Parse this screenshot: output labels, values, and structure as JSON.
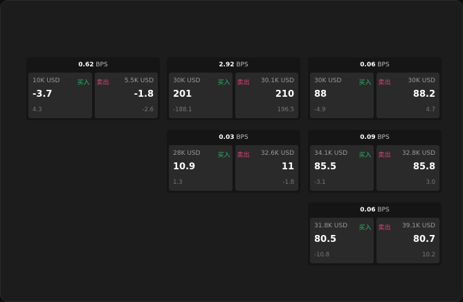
{
  "labels": {
    "buy": "买入",
    "sell": "卖出",
    "unit": "BPS"
  },
  "colors": {
    "buy": "#2db36a",
    "sell": "#e0407a"
  },
  "cards": [
    {
      "spread": "0.62",
      "bid": {
        "size": "10K USD",
        "price": "-3.7",
        "change": "4.3"
      },
      "ask": {
        "size": "5.5K USD",
        "price": "-1.8",
        "change": "-2.6"
      }
    },
    {
      "spread": "2.92",
      "bid": {
        "size": "30K USD",
        "price": "201",
        "change": "-188.1"
      },
      "ask": {
        "size": "30.1K USD",
        "price": "210",
        "change": "196.5"
      }
    },
    {
      "spread": "0.06",
      "bid": {
        "size": "30K USD",
        "price": "88",
        "change": "-4.9"
      },
      "ask": {
        "size": "30K USD",
        "price": "88.2",
        "change": "4.7"
      }
    },
    {
      "spread": "0.03",
      "bid": {
        "size": "28K USD",
        "price": "10.9",
        "change": "1.3"
      },
      "ask": {
        "size": "32.6K USD",
        "price": "11",
        "change": "-1.8"
      }
    },
    {
      "spread": "0.09",
      "bid": {
        "size": "34.1K USD",
        "price": "85.5",
        "change": "-3.1"
      },
      "ask": {
        "size": "32.8K USD",
        "price": "85.8",
        "change": "3.0"
      }
    },
    {
      "spread": "0.06",
      "bid": {
        "size": "31.8K USD",
        "price": "80.5",
        "change": "-10.8"
      },
      "ask": {
        "size": "39.1K USD",
        "price": "80.7",
        "change": "10.2"
      }
    }
  ]
}
